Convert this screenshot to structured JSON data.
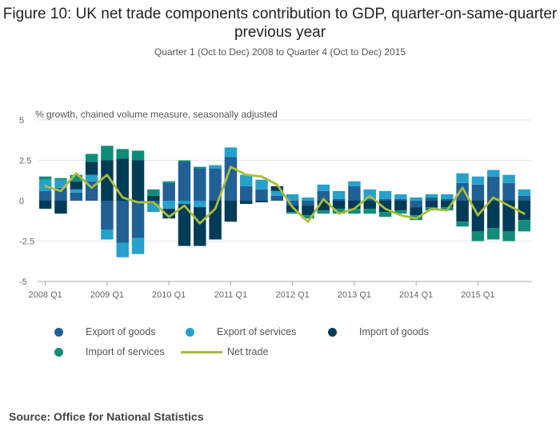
{
  "title": "Figure 10: UK net trade components contribution to GDP, quarter-on-same-quarter previous year",
  "subtitle": "Quarter 1 (Oct to Dec) 2008 to Quarter 4 (Oct to Dec) 2015",
  "source": "Source: Office for National Statistics",
  "colors": {
    "export_goods": "#206095",
    "export_services": "#27a0cc",
    "import_goods": "#003c57",
    "import_services": "#118c7b",
    "net_trade": "#a8bd3a",
    "grid": "#e5e5e5",
    "axis": "#aaaaaa"
  },
  "chart_data": {
    "type": "bar",
    "stacked": true,
    "ylabel": "% growth, chained volume measure, seasonally adjusted",
    "ylim": [
      -5,
      5
    ],
    "yticks": [
      "5",
      "2.5",
      "0",
      "-2.5",
      "-5"
    ],
    "ytick_values": [
      5,
      2.5,
      0,
      -2.5,
      -5
    ],
    "xtick_labels": [
      "2008 Q1",
      "2009 Q1",
      "2010 Q1",
      "2011 Q1",
      "2012 Q1",
      "2013 Q1",
      "2014 Q1",
      "2015 Q1"
    ],
    "xtick_indices": [
      0,
      4,
      8,
      12,
      16,
      20,
      24,
      28
    ],
    "categories": [
      "2008 Q1",
      "2008 Q2",
      "2008 Q3",
      "2008 Q4",
      "2009 Q1",
      "2009 Q2",
      "2009 Q3",
      "2009 Q4",
      "2010 Q1",
      "2010 Q2",
      "2010 Q3",
      "2010 Q4",
      "2011 Q1",
      "2011 Q2",
      "2011 Q3",
      "2011 Q4",
      "2012 Q1",
      "2012 Q2",
      "2012 Q3",
      "2012 Q4",
      "2013 Q1",
      "2013 Q2",
      "2013 Q3",
      "2013 Q4",
      "2014 Q1",
      "2014 Q2",
      "2014 Q3",
      "2014 Q4",
      "2015 Q1",
      "2015 Q2",
      "2015 Q3",
      "2015 Q4"
    ],
    "series": [
      {
        "name": "Export of goods",
        "color_key": "export_goods",
        "values": [
          0.6,
          0.8,
          0.5,
          1.2,
          -1.8,
          -2.6,
          -2.3,
          -0.2,
          1.1,
          2.4,
          2.0,
          2.0,
          2.7,
          0.9,
          0.7,
          0.3,
          -0.3,
          -0.3,
          0.6,
          0.1,
          0.9,
          0.1,
          0.1,
          0.1,
          -0.4,
          0.2,
          0.1,
          1.1,
          1.0,
          1.5,
          1.1,
          0.3
        ]
      },
      {
        "name": "Export of services",
        "color_key": "export_services",
        "values": [
          0.7,
          0.5,
          0.2,
          0.4,
          -0.6,
          -0.9,
          -1.0,
          -0.5,
          -0.5,
          -0.2,
          -0.4,
          0.2,
          0.6,
          0.7,
          0.6,
          0.3,
          0.4,
          0.2,
          0.4,
          0.5,
          0.3,
          0.6,
          0.5,
          0.3,
          0.2,
          0.2,
          0.3,
          0.6,
          0.5,
          0.4,
          0.5,
          0.4
        ]
      },
      {
        "name": "Import of goods",
        "color_key": "import_goods",
        "values": [
          -0.5,
          -0.8,
          0.5,
          0.8,
          2.5,
          2.6,
          2.5,
          0.3,
          -0.6,
          -2.6,
          -2.4,
          -2.4,
          -1.3,
          -0.2,
          -0.1,
          0.3,
          -0.4,
          -0.6,
          -0.6,
          -0.5,
          -0.5,
          -0.5,
          -0.7,
          -0.6,
          -0.5,
          -0.4,
          -0.4,
          -1.3,
          -1.9,
          -1.7,
          -1.9,
          -1.2
        ]
      },
      {
        "name": "Import of services",
        "color_key": "import_services",
        "values": [
          0.2,
          0.1,
          0.4,
          0.5,
          0.9,
          0.6,
          0.6,
          0.4,
          0.1,
          0.1,
          0.1,
          0.0,
          0.0,
          0.0,
          0.0,
          0.0,
          -0.1,
          -0.2,
          -0.2,
          -0.3,
          -0.3,
          -0.3,
          -0.3,
          -0.2,
          -0.3,
          -0.2,
          -0.2,
          -0.3,
          -0.6,
          -0.7,
          -0.6,
          -0.7
        ]
      },
      {
        "name": "Net trade",
        "color_key": "net_trade",
        "type": "line",
        "values": [
          0.9,
          0.6,
          1.7,
          0.8,
          1.6,
          0.2,
          -0.1,
          -0.1,
          -1.0,
          -0.3,
          -1.4,
          -0.5,
          2.1,
          1.6,
          1.5,
          1.0,
          -0.4,
          -1.3,
          0.1,
          -0.8,
          -0.5,
          0.3,
          -0.5,
          -0.9,
          -1.1,
          -0.5,
          -0.6,
          0.8,
          -0.9,
          0.2,
          -0.3,
          -0.8
        ]
      }
    ],
    "legend_position": "bottom",
    "grid": true
  }
}
